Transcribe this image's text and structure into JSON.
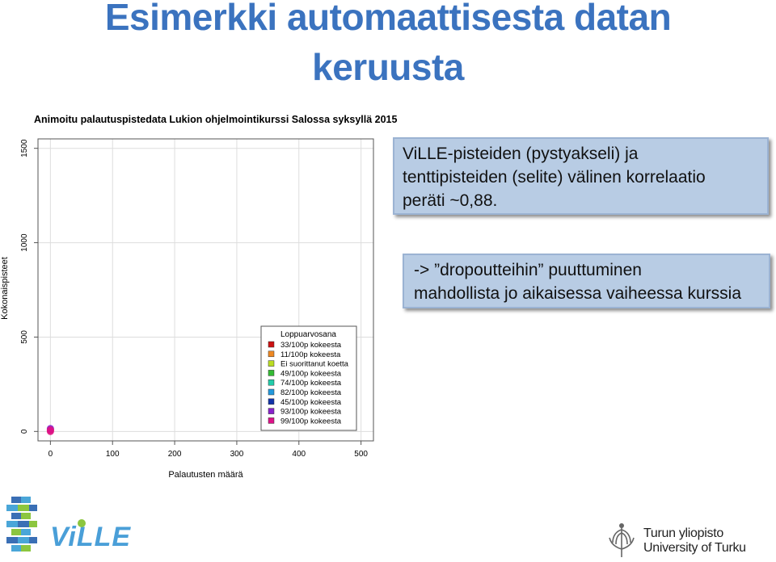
{
  "slide": {
    "title_line1": "Esimerkki automaattisesta datan",
    "title_line2": "keruusta",
    "callout1": [
      "ViLLE-pisteiden (pystyakseli) ja",
      "tenttipisteiden (selite) välinen korrelaatio",
      "peräti ~0,88."
    ],
    "callout2": [
      "-> ”dropoutteihin” puuttuminen",
      "mahdollista jo aikaisessa vaiheessa kurssia"
    ]
  },
  "chart_data": {
    "type": "scatter",
    "title": "Animoitu palautuspistedata Lukion ohjelmointikurssi Salossa syksyllä 2015",
    "xlabel": "Palautusten määrä",
    "ylabel": "Kokonaispisteet",
    "xlim": [
      -20,
      520
    ],
    "ylim": [
      -50,
      1550
    ],
    "xticks": [
      0,
      100,
      200,
      300,
      400,
      500
    ],
    "yticks": [
      0,
      500,
      1000,
      1500
    ],
    "grid": true,
    "legend": {
      "title": "Loppuarvosana",
      "position": "bottom-right",
      "entries": [
        {
          "label": "33/100p kokeesta",
          "color": "#cc1111"
        },
        {
          "label": "11/100p kokeesta",
          "color": "#ee8822"
        },
        {
          "label": "Ei suorittanut koetta",
          "color": "#bbdd22"
        },
        {
          "label": "49/100p kokeesta",
          "color": "#33bb33"
        },
        {
          "label": "74/100p kokeesta",
          "color": "#22ccaa"
        },
        {
          "label": "82/100p kokeesta",
          "color": "#2299dd"
        },
        {
          "label": "45/100p kokeesta",
          "color": "#1133aa"
        },
        {
          "label": "93/100p kokeesta",
          "color": "#8822cc"
        },
        {
          "label": "99/100p kokeesta",
          "color": "#dd1188"
        }
      ]
    },
    "points": [
      {
        "x": 0,
        "y": 10,
        "color": "#cc1111"
      },
      {
        "x": 0,
        "y": 5,
        "color": "#ee8822"
      },
      {
        "x": 0,
        "y": 15,
        "color": "#8822cc"
      },
      {
        "x": 0,
        "y": 0,
        "color": "#dd1188"
      },
      {
        "x": 0,
        "y": 8,
        "color": "#dd1188"
      }
    ]
  },
  "logos": {
    "ville_text": "ViLLE",
    "utu_line1": "Turun yliopisto",
    "utu_line2": "University of Turku"
  }
}
